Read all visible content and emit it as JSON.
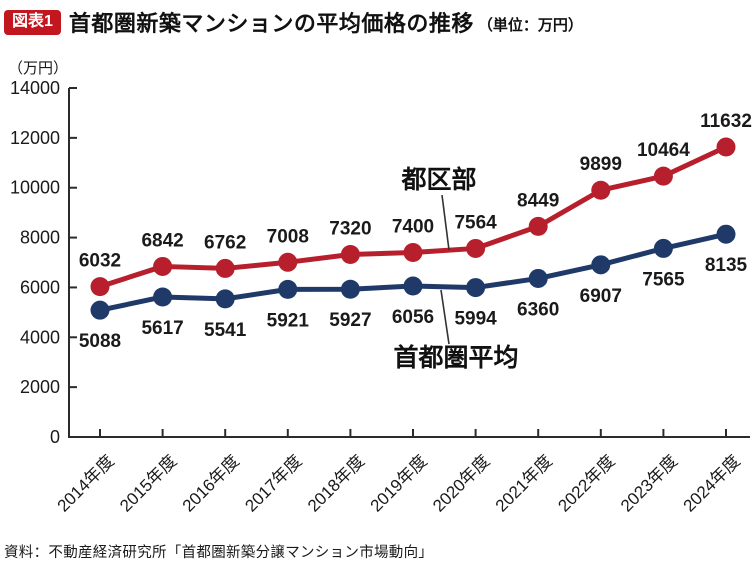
{
  "header": {
    "badge": "図表1",
    "title": "首都圏新築マンションの平均価格の推移",
    "unit": "（単位：万円）"
  },
  "source": "資料：不動産経済研究所「首都圏新築分譲マンション市場動向」",
  "colors": {
    "badge_bg": "#c2171e",
    "badge_text": "#ffffff",
    "tokubu_red": "#b81f2d",
    "shutoken_blue": "#1f3a68",
    "axis": "#2b2b2b",
    "text": "#1a1a1a"
  },
  "chart_data": {
    "type": "line",
    "title": "首都圏新築マンションの平均価格の推移",
    "unit": "万円",
    "ylabel": "（万円）",
    "categories": [
      "2014年度",
      "2015年度",
      "2016年度",
      "2017年度",
      "2018年度",
      "2019年度",
      "2020年度",
      "2021年度",
      "2022年度",
      "2023年度",
      "2024年度"
    ],
    "series": [
      {
        "name": "都区部",
        "color": "#b81f2d",
        "label_side": "above",
        "values": [
          6032,
          6842,
          6762,
          7008,
          7320,
          7400,
          7564,
          8449,
          9899,
          10464,
          11632
        ]
      },
      {
        "name": "首都圏平均",
        "color": "#1f3a68",
        "label_side": "below",
        "values": [
          5088,
          5617,
          5541,
          5921,
          5927,
          6056,
          5994,
          6360,
          6907,
          7565,
          8135
        ]
      }
    ],
    "ylim": [
      0,
      14000
    ],
    "ytick_step": 2000,
    "grid": false,
    "legend": "inline-annotations"
  }
}
